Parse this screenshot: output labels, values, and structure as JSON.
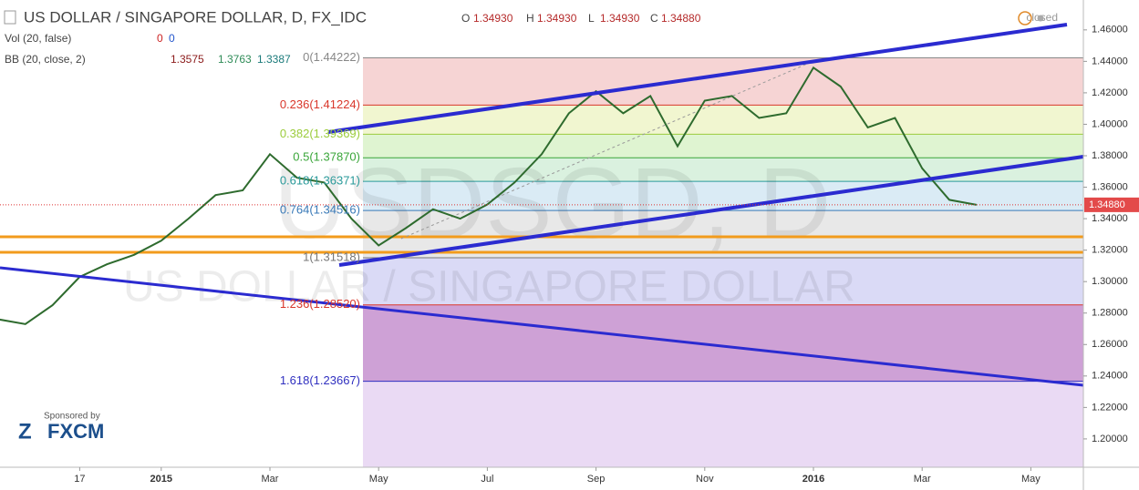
{
  "chart_data": {
    "type": "line",
    "title": "US DOLLAR / SINGAPORE DOLLAR, D, FX_IDC",
    "quote": {
      "categories": [
        "O",
        "H",
        "L",
        "C"
      ],
      "values": [
        1.3493,
        1.3493,
        1.3493,
        1.3488
      ],
      "value_labels": [
        "1.34930",
        "1.34930",
        "1.34930",
        "1.34880"
      ]
    },
    "indicators": [
      {
        "name": "Vol (20, false)",
        "values": [
          0,
          0
        ],
        "colors": [
          "#cc2222",
          "#2255cc"
        ]
      },
      {
        "name": "BB (20, close, 2)",
        "values": [
          1.3575,
          1.3763,
          1.3387
        ],
        "colors": [
          "#8b1a1a",
          "#2e8b57",
          "#1a7a7a"
        ]
      }
    ],
    "status": "closed",
    "watermark": "USDSGD, D",
    "watermark_subtitle": "US DOLLAR / SINGAPORE DOLLAR",
    "sponsor": "Sponsored by",
    "sponsor_name": "FXCM",
    "last_price": {
      "value": 1.3488,
      "label": "1.34880"
    },
    "color": "#2e6b2e",
    "categories": [
      null,
      null,
      null,
      "17",
      null,
      null,
      "2015",
      null,
      null,
      null,
      "Mar",
      null,
      null,
      null,
      "May",
      null,
      null,
      null,
      "Jul",
      null,
      null,
      null,
      "Sep",
      null,
      null,
      null,
      "Nov",
      null,
      null,
      null,
      "2016",
      null,
      null,
      null,
      "Mar",
      null,
      null,
      null,
      "May",
      null
    ],
    "values": [
      1.276,
      1.273,
      1.285,
      1.303,
      1.311,
      1.317,
      1.326,
      1.34,
      1.355,
      1.358,
      1.381,
      1.366,
      1.363,
      1.34,
      1.323,
      1.334,
      1.346,
      1.34,
      1.349,
      1.363,
      1.381,
      1.407,
      1.421,
      1.407,
      1.418,
      1.386,
      1.415,
      1.418,
      1.404,
      1.407,
      1.436,
      1.424,
      1.398,
      1.404,
      1.372,
      1.352,
      1.3488,
      null,
      null,
      null
    ],
    "ylim": [
      1.182,
      1.479
    ],
    "yticks": [
      {
        "value": 1.2,
        "label": "1.20000"
      },
      {
        "value": 1.22,
        "label": "1.22000"
      },
      {
        "value": 1.24,
        "label": "1.24000"
      },
      {
        "value": 1.26,
        "label": "1.26000"
      },
      {
        "value": 1.28,
        "label": "1.28000"
      },
      {
        "value": 1.3,
        "label": "1.30000"
      },
      {
        "value": 1.32,
        "label": "1.32000"
      },
      {
        "value": 1.34,
        "label": "1.34000"
      },
      {
        "value": 1.36,
        "label": "1.36000"
      },
      {
        "value": 1.38,
        "label": "1.38000"
      },
      {
        "value": 1.4,
        "label": "1.40000"
      },
      {
        "value": 1.42,
        "label": "1.42000"
      },
      {
        "value": 1.44,
        "label": "1.44000"
      },
      {
        "value": 1.46,
        "label": "1.46000"
      }
    ],
    "levels": [
      {
        "value": 1.44222,
        "label": "0(1.44222)",
        "color": "#888888",
        "band": "#f4cccc"
      },
      {
        "value": 1.41224,
        "label": "0.236(1.41224)",
        "color": "#d9372b",
        "band": "#eef5c8"
      },
      {
        "value": 1.39369,
        "label": "0.382(1.39369)",
        "color": "#9ccc3c",
        "band": "#d9f2c9"
      },
      {
        "value": 1.3787,
        "label": "0.5(1.37870)",
        "color": "#3aa63a",
        "band": "#d3efd9"
      },
      {
        "value": 1.36371,
        "label": "0.618(1.36371)",
        "color": "#2a9a9a",
        "band": "#d3e8f3"
      },
      {
        "value": 1.34516,
        "label": "0.764(1.34516)",
        "color": "#3a7ab8",
        "band": "#e4e4e4"
      },
      {
        "value": 1.31518,
        "label": "1(1.31518)",
        "color": "#777777",
        "band": "#d4d4f4"
      },
      {
        "value": 1.2852,
        "label": "1.236(1.28520)",
        "color": "#d9372b",
        "band": "#c690cf"
      },
      {
        "value": 1.23667,
        "label": "1.618(1.23667)",
        "color": "#3030c0",
        "band": "#e6d3f2"
      }
    ]
  }
}
